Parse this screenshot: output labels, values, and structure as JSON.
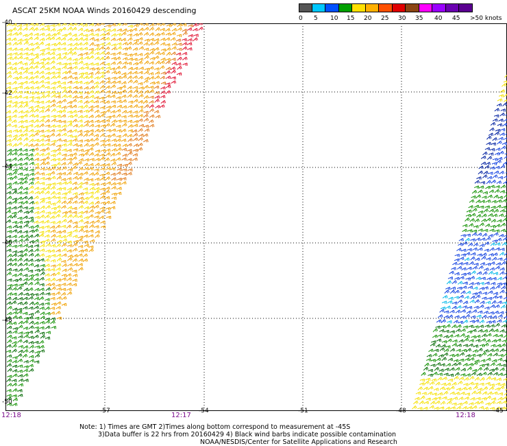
{
  "title": "ASCAT 25KM NOAA Winds 20160429 descending",
  "legend": {
    "labels": [
      "0",
      "5",
      "10",
      "15",
      "20",
      "25",
      "30",
      "35",
      "40",
      "45",
      ">50 knots"
    ],
    "colors": [
      "#555555",
      "#00c8ff",
      "#0050ff",
      "#00a000",
      "#ffe000",
      "#ffb000",
      "#ff5000",
      "#e00000",
      "#8b4513",
      "#ff00ff",
      "#6a00b0",
      "#9a00ff",
      "#ff00ff"
    ]
  },
  "axes": {
    "lon_labels": [
      "-57",
      "-54",
      "-51",
      "-48",
      "-45"
    ],
    "lat_labels": [
      "-40",
      "-42",
      "-44",
      "-46",
      "-48",
      "-50"
    ],
    "time_labels": [
      "12:18",
      "12:17",
      "12:18"
    ]
  },
  "notes": [
    "Note: 1) Times are GMT 2)Times along bottom correspond to measurement at -45S",
    "3)Data buffer is 22 hrs from 20160429 4) Black wind barbs indicate possible contamination"
  ],
  "credit": "NOAA/NESDIS/Center for Satellite Applications and Research"
}
